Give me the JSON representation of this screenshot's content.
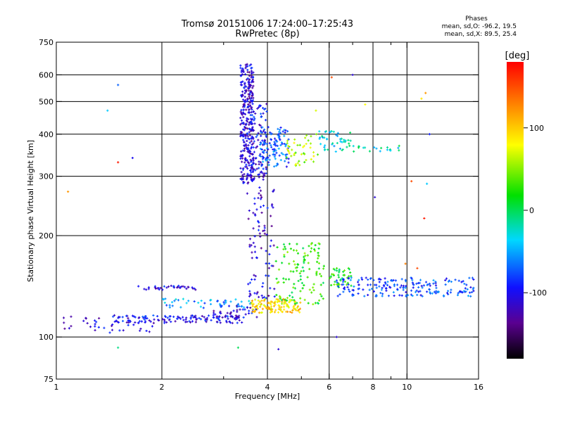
{
  "header": {
    "title_line1": "Tromsø 20151006 17:24:00–17:25:43",
    "title_line2": "RwPretec (8p)"
  },
  "phase_legend": {
    "title": "Phases",
    "line_o": "mean, sd,O: -96.2, 19.5",
    "line_x": "mean, sd,X:  89.5, 25.4"
  },
  "colorbar": {
    "unit_label": "[deg]",
    "tick_labels": [
      "100",
      "0",
      "-100"
    ],
    "tick_values": [
      100,
      0,
      -100
    ],
    "range": [
      -180,
      180
    ],
    "colormap": "rainbow: black-purple-blue-cyan-green-yellow-orange-red"
  },
  "chart_data": {
    "type": "scatter",
    "title": "Tromsø 20151006 17:24:00–17:25:43",
    "subtitle": "RwPretec (8p)",
    "xlabel": "Frequency [MHz]",
    "ylabel": "Stationary phase Virtual Height [km]",
    "x_scale": "log",
    "y_scale": "log",
    "xlim": [
      1,
      16
    ],
    "ylim": [
      75,
      750
    ],
    "x_ticks": [
      1,
      2,
      4,
      6,
      8,
      10,
      16
    ],
    "x_tick_labels": [
      "1",
      "2",
      "4",
      "6",
      "8",
      "10",
      "16"
    ],
    "x_minor_ticks": [
      3,
      5,
      7,
      9
    ],
    "y_ticks": [
      75,
      100,
      200,
      300,
      400,
      500,
      600,
      750
    ],
    "y_tick_labels": [
      "75",
      "100",
      "200",
      "300",
      "400",
      "500",
      "600",
      "750"
    ],
    "grid_x": [
      2,
      4,
      6,
      8,
      10
    ],
    "grid_y": [
      100,
      200,
      300,
      400,
      500,
      600
    ],
    "color_by": "phase [deg]",
    "clusters": [
      {
        "x": [
          1.05,
          1.95
        ],
        "y": [
          103,
          115
        ],
        "phase": -110,
        "density": 40
      },
      {
        "x": [
          1.45,
          3.4
        ],
        "y": [
          110,
          116
        ],
        "phase": -100,
        "density": 130
      },
      {
        "x": [
          1.7,
          2.5
        ],
        "y": [
          138,
          142
        ],
        "phase": -105,
        "density": 35
      },
      {
        "x": [
          2.0,
          3.6
        ],
        "y": [
          122,
          130
        ],
        "phase": -55,
        "density": 50
      },
      {
        "x": [
          2.8,
          3.8
        ],
        "y": [
          114,
          124
        ],
        "phase": -105,
        "density": 40
      },
      {
        "x": [
          3.35,
          3.65
        ],
        "y": [
          285,
          650
        ],
        "phase": -110,
        "density": 330
      },
      {
        "x": [
          3.6,
          4.0
        ],
        "y": [
          290,
          500
        ],
        "phase": -100,
        "density": 90
      },
      {
        "x": [
          3.8,
          4.6
        ],
        "y": [
          320,
          420
        ],
        "phase": -75,
        "density": 110
      },
      {
        "x": [
          4.5,
          5.6
        ],
        "y": [
          320,
          400
        ],
        "phase": 60,
        "density": 45
      },
      {
        "x": [
          3.5,
          4.2
        ],
        "y": [
          130,
          280
        ],
        "phase": -110,
        "density": 90
      },
      {
        "x": [
          3.6,
          5.0
        ],
        "y": [
          118,
          130
        ],
        "phase": 95,
        "density": 120
      },
      {
        "x": [
          4.2,
          5.8
        ],
        "y": [
          125,
          190
        ],
        "phase": 25,
        "density": 120
      },
      {
        "x": [
          5.6,
          7.0
        ],
        "y": [
          355,
          410
        ],
        "phase": -30,
        "density": 45
      },
      {
        "x": [
          6.0,
          7.0
        ],
        "y": [
          140,
          160
        ],
        "phase": 20,
        "density": 40
      },
      {
        "x": [
          6.3,
          15.5
        ],
        "y": [
          132,
          150
        ],
        "phase": -80,
        "density": 200
      },
      {
        "x": [
          7.0,
          9.5
        ],
        "y": [
          355,
          370
        ],
        "phase": -20,
        "density": 20
      }
    ],
    "sparse_points": [
      {
        "x": 1.08,
        "y": 270,
        "phase": 120
      },
      {
        "x": 1.4,
        "y": 470,
        "phase": -40
      },
      {
        "x": 1.5,
        "y": 560,
        "phase": -70
      },
      {
        "x": 1.5,
        "y": 330,
        "phase": 170
      },
      {
        "x": 1.65,
        "y": 340,
        "phase": -100
      },
      {
        "x": 5.5,
        "y": 470,
        "phase": 70
      },
      {
        "x": 6.1,
        "y": 590,
        "phase": 150
      },
      {
        "x": 7.0,
        "y": 600,
        "phase": -110
      },
      {
        "x": 7.6,
        "y": 490,
        "phase": 80
      },
      {
        "x": 10.3,
        "y": 290,
        "phase": 150
      },
      {
        "x": 11.0,
        "y": 510,
        "phase": 90
      },
      {
        "x": 11.3,
        "y": 530,
        "phase": 120
      },
      {
        "x": 11.6,
        "y": 400,
        "phase": -90
      },
      {
        "x": 11.4,
        "y": 285,
        "phase": -40
      },
      {
        "x": 11.2,
        "y": 225,
        "phase": 170
      },
      {
        "x": 6.3,
        "y": 100,
        "phase": -110
      },
      {
        "x": 4.3,
        "y": 92,
        "phase": -110
      },
      {
        "x": 3.3,
        "y": 93,
        "phase": 0
      },
      {
        "x": 1.5,
        "y": 93,
        "phase": -10
      },
      {
        "x": 8.1,
        "y": 260,
        "phase": -110
      },
      {
        "x": 9.9,
        "y": 165,
        "phase": 130
      },
      {
        "x": 10.7,
        "y": 160,
        "phase": 150
      }
    ]
  }
}
